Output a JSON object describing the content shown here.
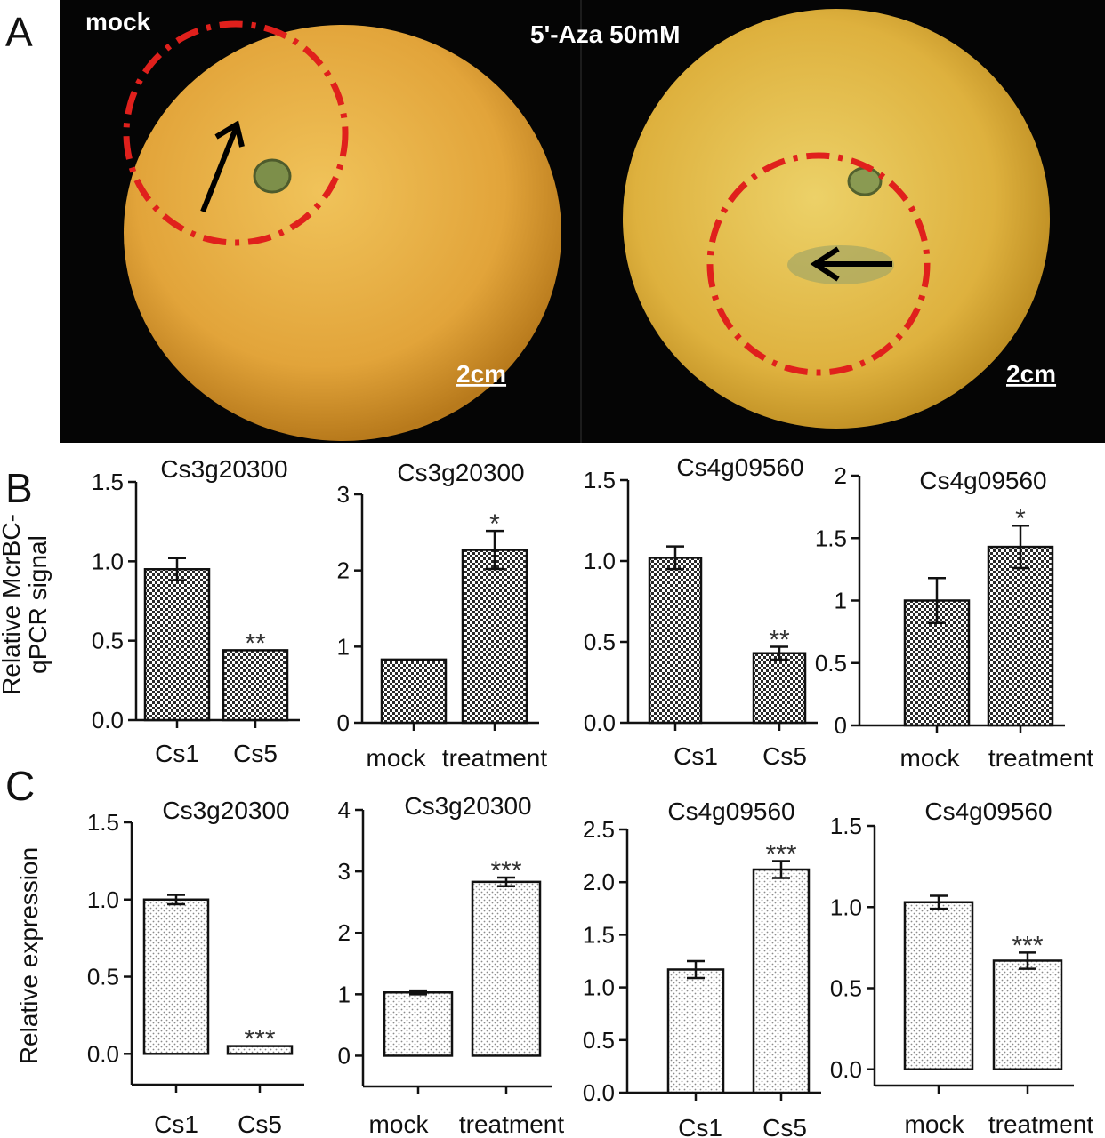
{
  "panel_labels": [
    "A",
    "B",
    "C"
  ],
  "photos": {
    "left_label": "mock",
    "right_label": "5'-Aza 50mM",
    "scale_bar": "2cm"
  },
  "row_b": {
    "ylabel": [
      "Relative McrBC-",
      "qPCR signal"
    ]
  },
  "row_c": {
    "ylabel": "Relative expression"
  },
  "colors": {
    "photo_background": "#050505",
    "fruit": "#e2a93a",
    "circle": "#e0201c",
    "bar_fill_b": "#7a7a7a",
    "bar_fill_c": "#f2f2f2"
  },
  "chart_data": [
    {
      "type": "bar",
      "row": "B",
      "title": "Cs3g20300",
      "categories": [
        "Cs1",
        "Cs5"
      ],
      "values": [
        0.95,
        0.44
      ],
      "errors": [
        0.07,
        0
      ],
      "significance": [
        "",
        "**"
      ],
      "ylim": [
        0,
        1.5
      ],
      "yticks": [
        0.0,
        0.5,
        1.0,
        1.5
      ],
      "ytick_labels": [
        "0.0",
        "0.5",
        "1.0",
        "1.5"
      ]
    },
    {
      "type": "bar",
      "row": "B",
      "title": "Cs3g20300",
      "categories": [
        "mock",
        "treatment"
      ],
      "values": [
        0.83,
        2.27
      ],
      "errors": [
        0,
        0.25
      ],
      "significance": [
        "",
        "*"
      ],
      "ylim": [
        0,
        3
      ],
      "yticks": [
        0,
        1,
        2,
        3
      ],
      "ytick_labels": [
        "0",
        "1",
        "2",
        "3"
      ]
    },
    {
      "type": "bar",
      "row": "B",
      "title": "Cs4g09560",
      "categories": [
        "Cs1",
        "Cs5"
      ],
      "values": [
        1.02,
        0.43
      ],
      "errors": [
        0.07,
        0.04
      ],
      "significance": [
        "",
        "**"
      ],
      "ylim": [
        0,
        1.5
      ],
      "yticks": [
        0.0,
        0.5,
        1.0,
        1.5
      ],
      "ytick_labels": [
        "0.0",
        "0.5",
        "1.0",
        "1.5"
      ]
    },
    {
      "type": "bar",
      "row": "B",
      "title": "Cs4g09560",
      "categories": [
        "mock",
        "treatment"
      ],
      "values": [
        1.0,
        1.43
      ],
      "errors": [
        0.18,
        0.17
      ],
      "significance": [
        "",
        "*"
      ],
      "ylim": [
        0,
        2
      ],
      "yticks": [
        0,
        0.5,
        1,
        1.5,
        2
      ],
      "ytick_labels": [
        "0",
        "0.5",
        "1",
        "1.5",
        "2"
      ]
    },
    {
      "type": "bar",
      "row": "C",
      "title": "Cs3g20300",
      "categories": [
        "Cs1",
        "Cs5"
      ],
      "values": [
        1.0,
        0.05
      ],
      "errors": [
        0.03,
        0
      ],
      "significance": [
        "",
        "***"
      ],
      "ylim": [
        -0.2,
        1.5
      ],
      "yticks": [
        0.0,
        0.5,
        1.0,
        1.5
      ],
      "ytick_labels": [
        "0.0",
        "0.5",
        "1.0",
        "1.5"
      ]
    },
    {
      "type": "bar",
      "row": "C",
      "title": "Cs3g20300",
      "categories": [
        "mock",
        "treatment"
      ],
      "values": [
        1.03,
        2.83
      ],
      "errors": [
        0.03,
        0.07
      ],
      "significance": [
        "",
        "***"
      ],
      "ylim": [
        -0.5,
        4
      ],
      "yticks": [
        0,
        1,
        2,
        3,
        4
      ],
      "ytick_labels": [
        "0",
        "1",
        "2",
        "3",
        "4"
      ]
    },
    {
      "type": "bar",
      "row": "C",
      "title": "Cs4g09560",
      "categories": [
        "Cs1",
        "Cs5"
      ],
      "values": [
        1.17,
        2.12
      ],
      "errors": [
        0.08,
        0.08
      ],
      "significance": [
        "",
        "***"
      ],
      "ylim": [
        0,
        2.5
      ],
      "yticks": [
        0.0,
        0.5,
        1.0,
        1.5,
        2.0,
        2.5
      ],
      "ytick_labels": [
        "0.0",
        "0.5",
        "1.0",
        "1.5",
        "2.0",
        "2.5"
      ]
    },
    {
      "type": "bar",
      "row": "C",
      "title": "Cs4g09560",
      "categories": [
        "mock",
        "treatment"
      ],
      "values": [
        1.03,
        0.67
      ],
      "errors": [
        0.04,
        0.05
      ],
      "significance": [
        "",
        "***"
      ],
      "ylim": [
        -0.1,
        1.5
      ],
      "yticks": [
        0.0,
        0.5,
        1.0,
        1.5
      ],
      "ytick_labels": [
        "0.0",
        "0.5",
        "1.0",
        "1.5"
      ]
    }
  ]
}
